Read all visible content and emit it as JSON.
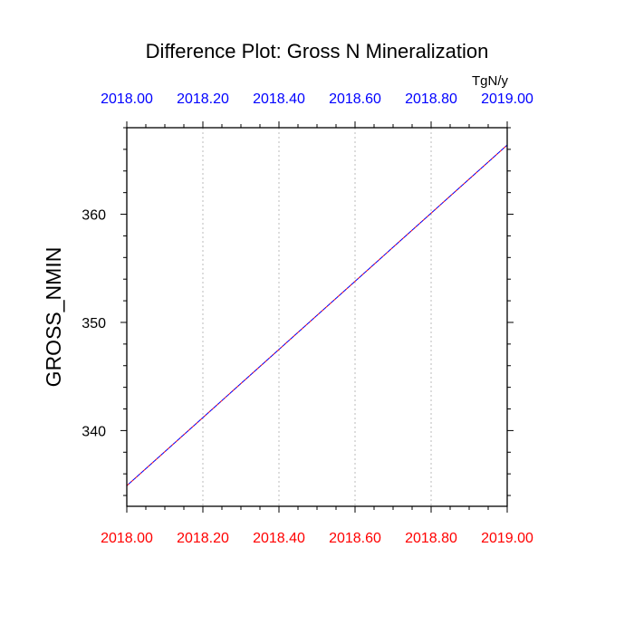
{
  "chart_data": {
    "type": "line",
    "title": "Difference Plot: Gross N Mineralization",
    "units": "TgN/y",
    "ylabel": "GROSS_NMIN",
    "xlabel": "",
    "xlim": [
      2018.0,
      2019.0
    ],
    "ylim": [
      333.0,
      368.0
    ],
    "x_ticks": [
      "2018.00",
      "2018.20",
      "2018.40",
      "2018.60",
      "2018.80",
      "2019.00"
    ],
    "x_tick_values": [
      2018.0,
      2018.2,
      2018.4,
      2018.6,
      2018.8,
      2019.0
    ],
    "y_ticks": [
      "340",
      "350",
      "360"
    ],
    "y_tick_values": [
      340,
      350,
      360
    ],
    "grid": "vertical dotted",
    "bottom_axis_color": "#ff0000",
    "top_axis_color": "#0000ff",
    "series": [
      {
        "color": "#ff0000",
        "dash": "dashed",
        "x": [
          2018.0,
          2019.0
        ],
        "y": [
          334.9,
          366.4
        ]
      },
      {
        "color": "#0000ff",
        "dash": "dashed",
        "x": [
          2018.0,
          2019.0
        ],
        "y": [
          334.9,
          366.4
        ]
      }
    ]
  }
}
